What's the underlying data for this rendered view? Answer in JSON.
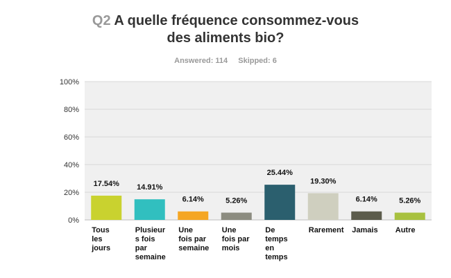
{
  "title": {
    "qnum": "Q2",
    "line1": "A quelle fréquence consommez-vous",
    "line2": "des aliments bio?"
  },
  "meta": {
    "answered_label": "Answered: 114",
    "skipped_label": "Skipped: 6"
  },
  "chart_data": {
    "type": "bar",
    "categories": [
      "Tous les jours",
      "Plusieurs fois par semaine",
      "Une fois par semaine",
      "Une fois par mois",
      "De temps en temps",
      "Rarement",
      "Jamais",
      "Autre"
    ],
    "category_lines": [
      [
        "Tous",
        "les",
        "jours"
      ],
      [
        "Plusieur",
        "s fois",
        "par",
        "semaine"
      ],
      [
        "Une",
        "fois par",
        "semaine"
      ],
      [
        "Une",
        "fois par",
        "mois"
      ],
      [
        "De",
        "temps",
        "en",
        "temps"
      ],
      [
        "Rarement"
      ],
      [
        "Jamais"
      ],
      [
        "Autre"
      ]
    ],
    "values": [
      17.54,
      14.91,
      6.14,
      5.26,
      25.44,
      19.3,
      6.14,
      5.26
    ],
    "value_labels": [
      "17.54%",
      "14.91%",
      "6.14%",
      "5.26%",
      "25.44%",
      "19.30%",
      "6.14%",
      "5.26%"
    ],
    "colors": [
      "#c9d22f",
      "#31bfbf",
      "#f5a623",
      "#8c8c80",
      "#2b5f6e",
      "#cfcfbf",
      "#5c5c4c",
      "#a8c13f"
    ],
    "ylim": [
      0,
      100
    ],
    "yticks": [
      0,
      20,
      40,
      60,
      80,
      100
    ],
    "ytick_labels": [
      "0%",
      "20%",
      "40%",
      "60%",
      "80%",
      "100%"
    ],
    "grid": true,
    "plot_background": "#f0f0f0",
    "title": "",
    "xlabel": "",
    "ylabel": ""
  }
}
